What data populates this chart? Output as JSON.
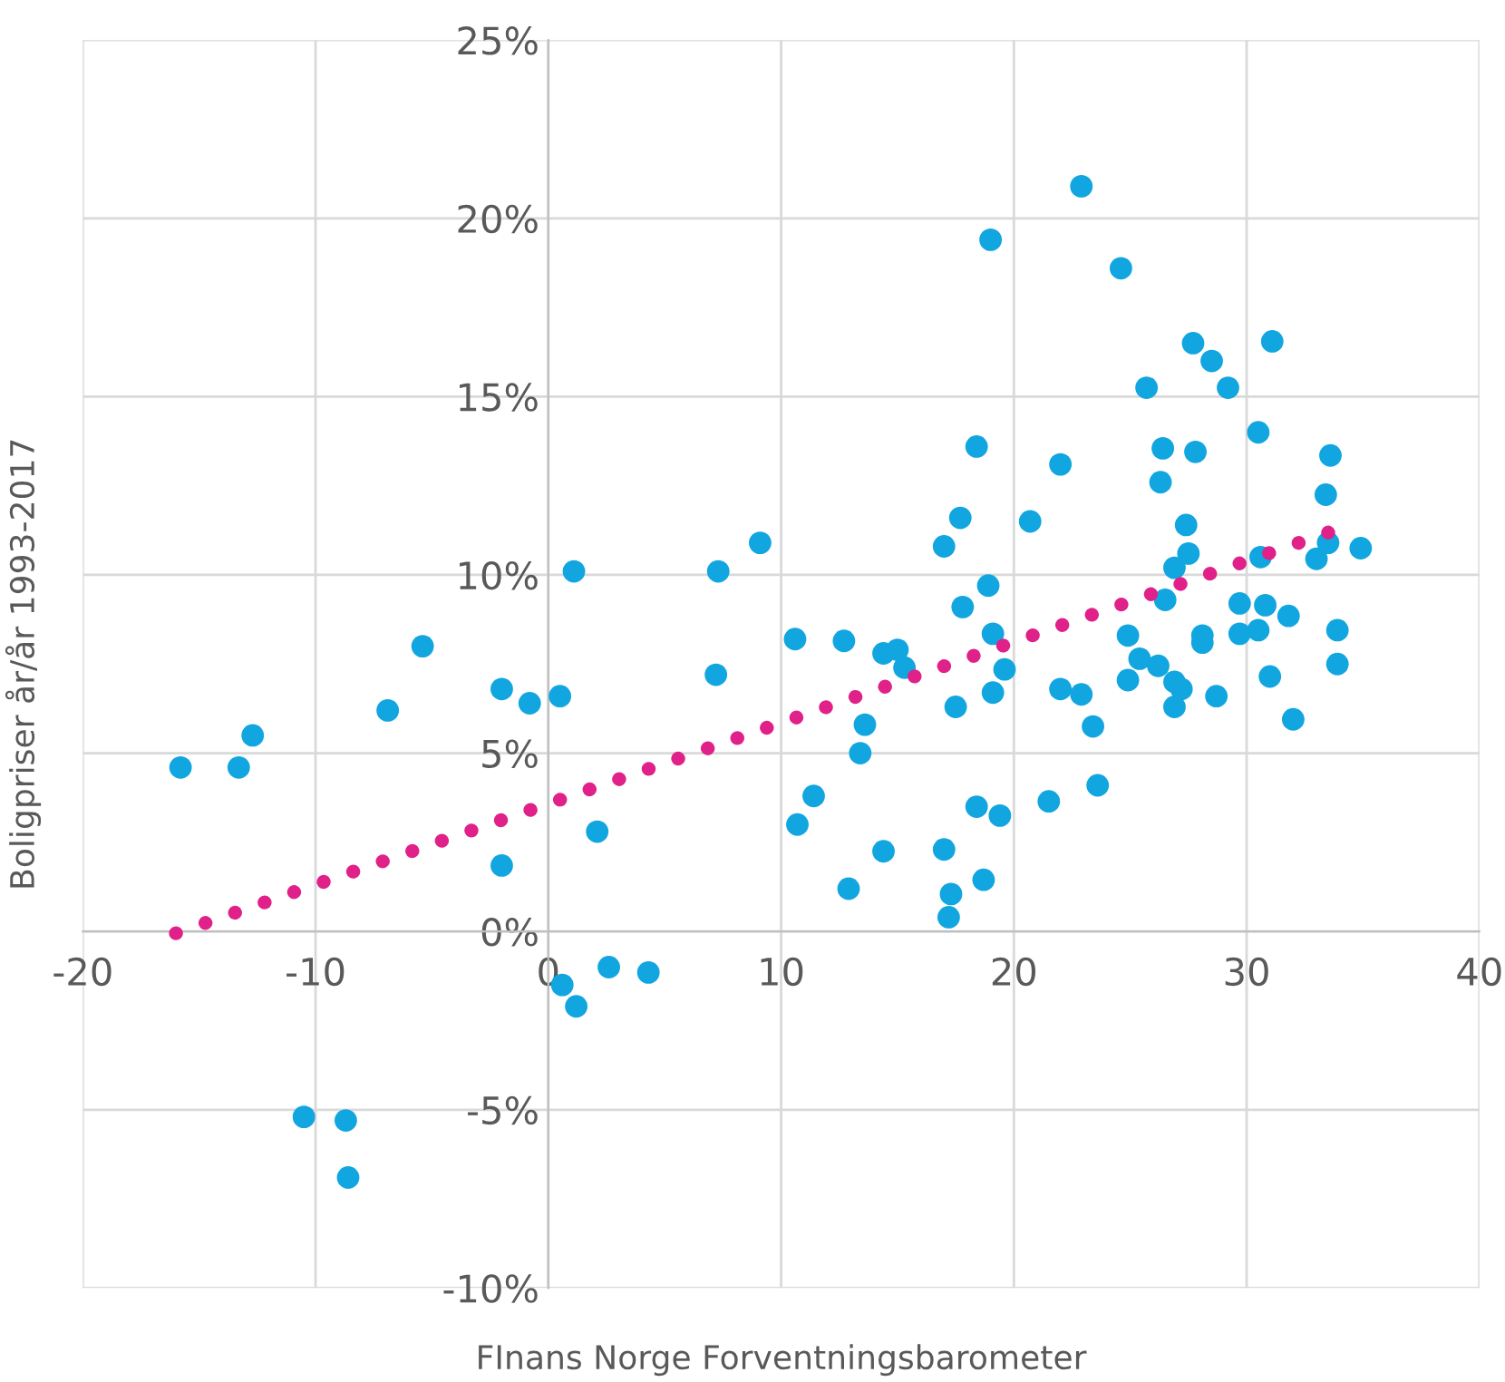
{
  "chart_data": {
    "type": "scatter",
    "xlabel": "FInans Norge Forventningsbarometer",
    "ylabel": "Boligpriser år/år 1993-2017",
    "xlim": [
      -20,
      40
    ],
    "xticks": [
      -20,
      -10,
      0,
      10,
      20,
      30,
      40
    ],
    "ylim": [
      -10,
      25
    ],
    "yticks": [
      {
        "value": -10,
        "label": "-10%"
      },
      {
        "value": -5,
        "label": "-5%"
      },
      {
        "value": 0,
        "label": "0%"
      },
      {
        "value": 5,
        "label": "5%"
      },
      {
        "value": 10,
        "label": "10%"
      },
      {
        "value": 15,
        "label": "15%"
      },
      {
        "value": 20,
        "label": "20%"
      },
      {
        "value": 25,
        "label": "25%"
      }
    ],
    "grid": true,
    "series": [
      {
        "marker": "circle",
        "color": "#12a6e0",
        "x": [
          -15.8,
          -13.3,
          -12.7,
          -6.9,
          -5.4,
          -2.0,
          -0.8,
          0.5,
          1.1,
          -2.0,
          2.1,
          0.6,
          1.2,
          2.6,
          4.3,
          -10.5,
          -8.7,
          -8.6,
          7.3,
          9.1,
          7.2,
          10.6,
          10.7,
          12.7,
          14.4,
          15.0,
          15.3,
          13.6,
          13.4,
          11.4,
          14.4,
          12.9,
          17.0,
          17.3,
          17.2,
          18.7,
          18.4,
          19.4,
          21.5,
          23.6,
          17.5,
          19.1,
          19.6,
          19.1,
          17.8,
          18.9,
          17.0,
          17.7,
          18.4,
          19.0,
          22.9,
          24.6,
          22.0,
          20.7,
          22.0,
          22.9,
          23.4,
          24.9,
          25.4,
          24.9,
          26.2,
          26.9,
          27.2,
          26.9,
          28.7,
          26.5,
          26.9,
          27.5,
          27.4,
          26.3,
          26.4,
          27.8,
          25.7,
          27.7,
          28.5,
          29.2,
          31.1,
          30.5,
          28.1,
          28.1,
          29.7,
          29.7,
          30.5,
          30.8,
          31.8,
          31.0,
          32.0,
          30.6,
          33.6,
          33.4,
          33.5,
          33.0,
          34.9,
          33.9,
          33.9
        ],
        "values": [
          4.6,
          4.6,
          5.5,
          6.2,
          8.0,
          6.8,
          6.4,
          6.6,
          10.1,
          1.85,
          2.8,
          -1.5,
          -2.1,
          -1.0,
          -1.15,
          -5.2,
          -5.3,
          -6.9,
          10.1,
          10.9,
          7.2,
          8.2,
          3.0,
          8.15,
          7.8,
          7.9,
          7.4,
          5.8,
          5.0,
          3.8,
          2.25,
          1.2,
          2.3,
          1.05,
          0.4,
          1.45,
          3.5,
          3.25,
          3.65,
          4.1,
          6.3,
          6.7,
          7.35,
          8.35,
          9.1,
          9.7,
          10.8,
          11.6,
          13.6,
          19.4,
          20.9,
          18.6,
          13.1,
          11.5,
          6.8,
          6.65,
          5.75,
          8.3,
          7.65,
          7.05,
          7.45,
          7.0,
          6.8,
          6.3,
          6.6,
          9.3,
          10.2,
          10.6,
          11.4,
          12.6,
          13.55,
          13.45,
          15.25,
          16.5,
          16.0,
          15.25,
          16.55,
          14.0,
          8.3,
          8.1,
          9.2,
          8.35,
          8.45,
          9.15,
          8.85,
          7.15,
          5.95,
          10.5,
          13.35,
          12.25,
          10.9,
          10.45,
          10.75,
          8.45,
          7.5
        ]
      },
      {
        "type": "line",
        "color": "#e0218a",
        "line_style": "dotted",
        "x": [
          -16,
          34
        ],
        "values": [
          -0.05,
          11.3
        ]
      }
    ]
  }
}
